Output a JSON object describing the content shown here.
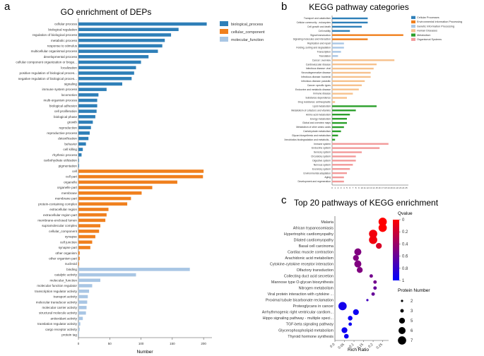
{
  "colors": {
    "biological_process": "#2e7fb8",
    "cellular_component": "#f0801e",
    "molecular_function": "#a9c6e4",
    "Cellular Processes": "#2e7fb8",
    "Environmental Information Processing": "#f0801e",
    "Genetic Information Processing": "#a9c6e4",
    "Human Diseases": "#f6c18d",
    "Metabolism": "#2ca02c",
    "Organismal Systems": "#f29a9a"
  },
  "chart_data": [
    {
      "type": "bar",
      "panel_letter": "a",
      "title": "GO enrichment of DEPs",
      "xlabel": "Number",
      "ylabel": "",
      "xlim": [
        0,
        210
      ],
      "xticks": [
        "0",
        "50",
        "100",
        "150",
        "200"
      ],
      "legend_position": "top-right",
      "legend": [
        "biological_process",
        "cellular_component",
        "molecular_function"
      ],
      "series": [
        {
          "name": "biological_process",
          "categories": [
            "cellular process",
            "biological regulation",
            "regulation of biological process",
            "metabolic process",
            "response to stimulus",
            "multicellular organismal process",
            "developmental process",
            "cellular component organization or bioge...",
            "localization",
            "positive regulation of biological proces...",
            "negative regulation of biological proces...",
            "signaling",
            "immune system process",
            "locomotion",
            "multi-organism process",
            "biological adhesion",
            "cell proliferation",
            "biological phase",
            "growth",
            "reproduction",
            "reproductive process",
            "detoxification",
            "behavior",
            "cell killing",
            "rhythmic process",
            "carbohydrate utilization",
            "pigmentation"
          ],
          "values": [
            205,
            160,
            148,
            138,
            134,
            127,
            112,
            100,
            92,
            89,
            85,
            70,
            45,
            32,
            30,
            30,
            29,
            27,
            23,
            20,
            18,
            16,
            12,
            7,
            5,
            1,
            1
          ]
        },
        {
          "name": "cellular_component",
          "categories": [
            "cell",
            "cell part",
            "organelle",
            "organelle part",
            "membrane",
            "membrane part",
            "protein-containing complex",
            "extracellular region",
            "extracellular region part",
            "membrane-enclosed lumen",
            "supramolecular complex",
            "cellular_component",
            "synapse",
            "cell junction",
            "synapse part",
            "other organism",
            "other organism part",
            "nucleoid"
          ],
          "values": [
            200,
            199,
            158,
            118,
            101,
            84,
            78,
            48,
            45,
            43,
            35,
            33,
            27,
            22,
            19,
            2,
            2,
            1
          ]
        },
        {
          "name": "molecular_function",
          "categories": [
            "binding",
            "catalytic activity",
            "molecular_function",
            "molecular function regulator",
            "transcription regulator activity",
            "transport activity",
            "molecular transducer activity",
            "molecular carrier activity",
            "structural molecule activity",
            "antioxidant activity",
            "translation regulator activity",
            "cargo receptor activity",
            "protein tag"
          ],
          "values": [
            178,
            92,
            35,
            22,
            17,
            15,
            14,
            13,
            12,
            7,
            3,
            2,
            1
          ]
        }
      ]
    },
    {
      "type": "bar",
      "panel_letter": "b",
      "title": "KEGG pathway categories",
      "xlabel": "",
      "ylabel": "",
      "xlim": [
        0,
        25
      ],
      "xticks": [
        "0",
        "1",
        "2",
        "3",
        "4",
        "5",
        "6",
        "7",
        "8",
        "9",
        "10",
        "11",
        "12",
        "13",
        "14",
        "15",
        "16",
        "17",
        "18",
        "19",
        "20",
        "21",
        "22",
        "23",
        "24",
        "25"
      ],
      "legend_position": "right",
      "legend": [
        "Cellular Processes",
        "Environmental Information Processing",
        "Genetic Information Processing",
        "Human Diseases",
        "Metabolism",
        "Organismal Systems"
      ],
      "series": [
        {
          "name": "Cellular Processes",
          "categories": [
            "Transport and catabolism",
            "Cellular community - eukaryotes",
            "Cell growth and death",
            "Cell motility"
          ],
          "values": [
            12,
            12,
            10,
            6
          ]
        },
        {
          "name": "Environmental Information Processing",
          "categories": [
            "Signal transduction",
            "Signaling molecules and interaction"
          ],
          "values": [
            24,
            12
          ]
        },
        {
          "name": "Genetic Information Processing",
          "categories": [
            "Replication and repair",
            "Folding, sorting and degradation",
            "Transcription",
            "Translation"
          ],
          "values": [
            4,
            4,
            3,
            2
          ]
        },
        {
          "name": "Human Diseases",
          "categories": [
            "Cancer: overview",
            "Cardiovascular disease",
            "Infectious disease: viral",
            "Neurodegenerative disease",
            "Infectious disease: bacterial",
            "Infectious disease: parasitic",
            "Cancer: specific types",
            "Endocrine and metabolic disease",
            "Immune disease",
            "Substance dependence",
            "Drug resistance: antineoplastic"
          ],
          "values": [
            21,
            15,
            14,
            13,
            13,
            11,
            10,
            9,
            7,
            5,
            1
          ]
        },
        {
          "name": "Metabolism",
          "categories": [
            "Lipid metabolism",
            "Metabolism of cofactors and vitamins",
            "Amino acid metabolism",
            "Energy metabolism",
            "Global and overview maps",
            "Metabolism of other amino acids",
            "Carbohydrate metabolism",
            "Glycan biosynthesis and metabolism",
            "Xenobiotics biodegradation and metabolis..."
          ],
          "values": [
            15,
            8,
            6,
            5,
            5,
            4,
            3,
            2,
            1
          ]
        },
        {
          "name": "Organismal Systems",
          "categories": [
            "Immune system",
            "Endocrine system",
            "Sensory system",
            "Circulatory system",
            "Digestive system",
            "Nervous system",
            "Excretory system",
            "Environmental adaptation",
            "Aging",
            "Development and regeneration"
          ],
          "values": [
            19,
            16,
            10,
            8,
            8,
            7,
            6,
            5,
            4,
            4
          ]
        }
      ]
    },
    {
      "type": "scatter",
      "panel_letter": "c",
      "title": "Top 20 pathways of KEGG enrichment",
      "xlabel": "Rich Ratio",
      "ylabel": "",
      "xlim": [
        0,
        0.27
      ],
      "xticks": [
        "0.0",
        "0.05",
        "0.1",
        "0.15",
        "0.2",
        "0.25"
      ],
      "colorbar_title": "Qvalue",
      "colorbar_ticks": [
        "0",
        "0.2",
        "0.4",
        "0.6",
        "0.8",
        "1"
      ],
      "size_legend_title": "Protein Number",
      "size_legend_values": [
        2,
        3,
        5,
        6,
        7
      ],
      "pathways": [
        "Malaria",
        "African trypanosomiasis",
        "Hypertrophic cardiomyopathy",
        "Dilated cardiomyopathy",
        "Basal cell carcinoma",
        "Cardiac muscle contraction",
        "Arachidonic acid metabolism",
        "Cytokine-cytokine receptor interaction",
        "Olfactory transduction",
        "Collecting duct acid secretion",
        "Mannose type O-glycan biosynthesis",
        "Nitrogen metabolism",
        "Viral protein interaction with cytokine ...",
        "Proximal tubule bicarbonate reclamation",
        "Proteoglycans in cancer",
        "Arrhythmogenic right ventricular cardiom...",
        "Hippo signaling pathway - multiple speci...",
        "TGF-beta signaling pathway",
        "Glycerophospholipid metabolism",
        "Thyroid hormone synthesis"
      ],
      "rich_ratio": [
        0.25,
        0.25,
        0.2,
        0.2,
        0.23,
        0.12,
        0.11,
        0.12,
        0.13,
        0.19,
        0.21,
        0.21,
        0.2,
        0.17,
        0.04,
        0.11,
        0.08,
        0.08,
        0.05,
        0.06
      ],
      "protein_number": [
        7,
        7,
        7,
        7,
        5,
        6,
        5,
        6,
        5,
        3,
        3,
        3,
        3,
        2,
        7,
        5,
        4,
        3,
        5,
        4
      ],
      "qvalue": [
        0.0,
        0.0,
        0.05,
        0.05,
        0.15,
        0.5,
        0.5,
        0.5,
        0.5,
        0.55,
        0.55,
        0.6,
        0.6,
        0.75,
        0.92,
        0.95,
        0.95,
        0.95,
        0.95,
        0.95
      ]
    }
  ]
}
